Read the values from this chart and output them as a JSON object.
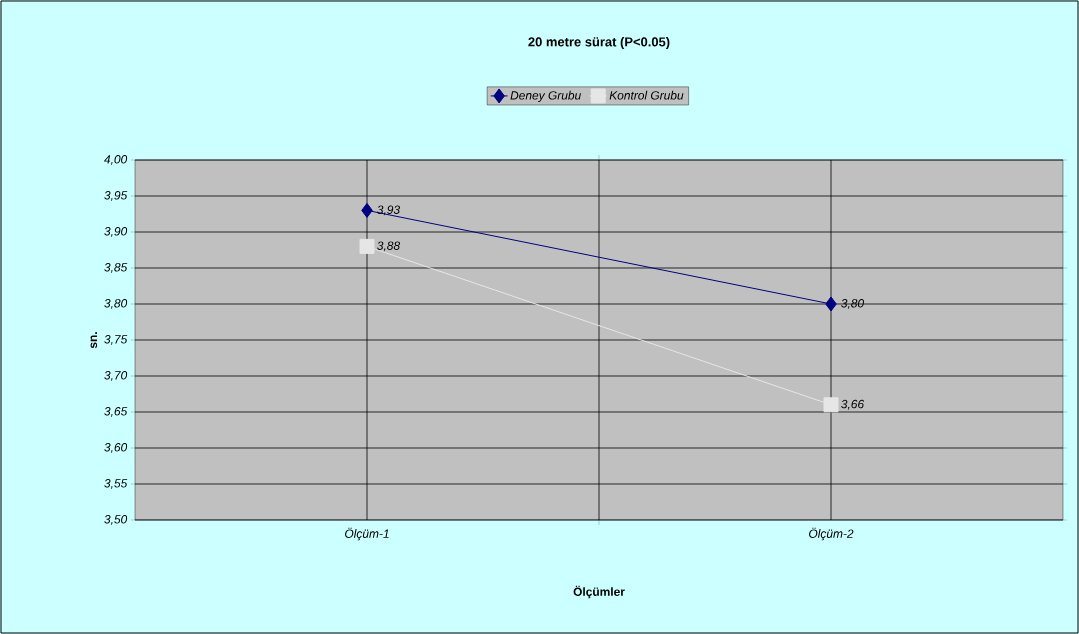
{
  "chart_data": {
    "type": "line",
    "title": "20 metre sürat (P<0.05)",
    "xlabel": "Ölçümler",
    "ylabel": "sn.",
    "categories": [
      "Ölçüm-1",
      "Ölçüm-2"
    ],
    "series": [
      {
        "name": "Deney Grubu",
        "color": "#000080",
        "marker": "diamond",
        "values": [
          3.93,
          3.8
        ],
        "value_labels": [
          "3,93",
          "3,80"
        ]
      },
      {
        "name": "Kontrol Grubu",
        "color": "#e6e6e6",
        "marker": "square",
        "values": [
          3.88,
          3.66
        ],
        "value_labels": [
          "3,88",
          "3,66"
        ]
      }
    ],
    "ylim": [
      3.5,
      4.0
    ],
    "yticks": [
      {
        "value": 3.5,
        "label": "3,50"
      },
      {
        "value": 3.55,
        "label": "3,55"
      },
      {
        "value": 3.6,
        "label": "3,60"
      },
      {
        "value": 3.65,
        "label": "3,65"
      },
      {
        "value": 3.7,
        "label": "3,70"
      },
      {
        "value": 3.75,
        "label": "3,75"
      },
      {
        "value": 3.8,
        "label": "3,80"
      },
      {
        "value": 3.85,
        "label": "3,85"
      },
      {
        "value": 3.9,
        "label": "3,90"
      },
      {
        "value": 3.95,
        "label": "3,95"
      },
      {
        "value": 4.0,
        "label": "4,00"
      }
    ],
    "grid": true,
    "legend": "top",
    "line_style": "solid"
  }
}
